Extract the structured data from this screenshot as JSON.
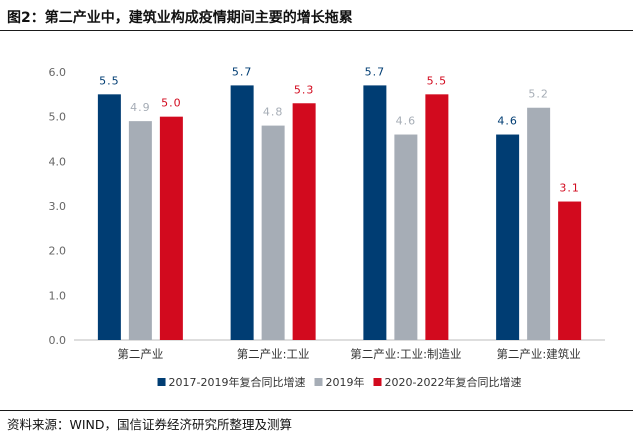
{
  "title": "图2：第二产业中，建筑业构成疫情期间主要的增长拖累",
  "source": "资料来源：WIND，国信证券经济研究所整理及测算",
  "chart_data": {
    "type": "bar",
    "categories": [
      "第二产业",
      "第二产业:工业",
      "第二产业:工业:制造业",
      "第二产业:建筑业"
    ],
    "series": [
      {
        "name": "2017-2019年复合同比增速",
        "color": "#003d73",
        "values": [
          5.5,
          5.7,
          5.7,
          4.6
        ]
      },
      {
        "name": "2019年",
        "color": "#a6adb6",
        "values": [
          4.9,
          4.8,
          4.6,
          5.2
        ]
      },
      {
        "name": "2020-2022年复合同比增速",
        "color": "#d20a1e",
        "values": [
          5.0,
          5.3,
          5.5,
          3.1
        ]
      }
    ],
    "yticks": [
      "0.0",
      "1.0",
      "2.0",
      "3.0",
      "4.0",
      "5.0",
      "6.0"
    ],
    "ylim": [
      0,
      6
    ],
    "legend_position": "bottom",
    "grid": false,
    "data_labels": true
  }
}
